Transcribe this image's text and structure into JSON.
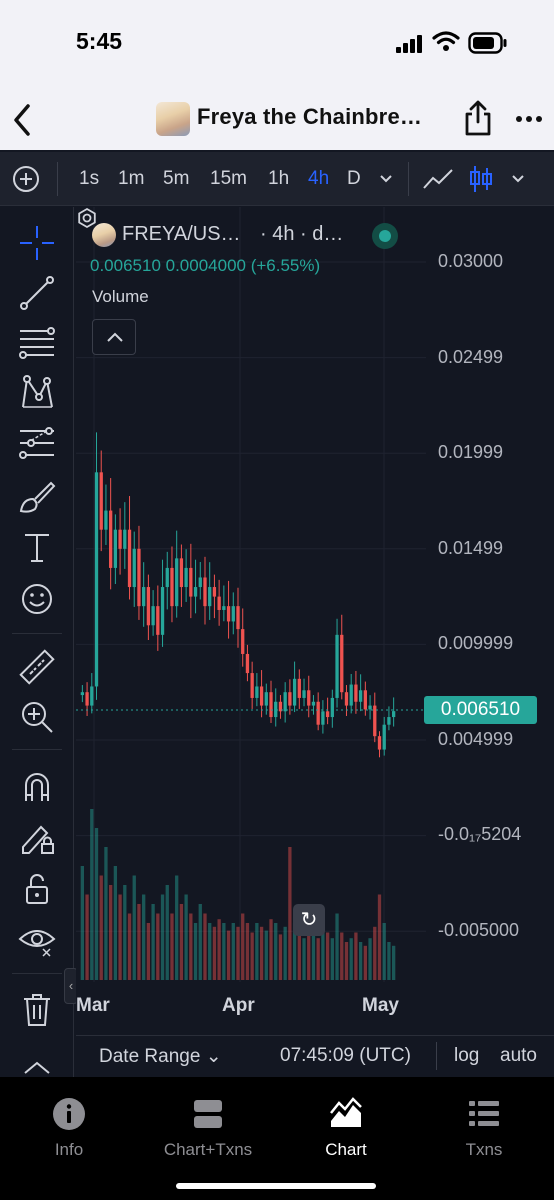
{
  "status_bar": {
    "time": "5:45"
  },
  "nav": {
    "title": "Freya the Chainbre…"
  },
  "timeframes": [
    "1s",
    "1m",
    "5m",
    "15m",
    "1h",
    "4h",
    "D"
  ],
  "active_timeframe": "4h",
  "legend": {
    "symbol": "FREYA/US…",
    "interval": "· 4h · d…",
    "ohlc": "0.006510  0.0004000 (+6.55%)",
    "volume_label": "Volume"
  },
  "colors": {
    "up": "#26a69a",
    "down": "#ef5350",
    "accent": "#2962ff",
    "background": "#131722"
  },
  "chart_data": {
    "type": "candlestick",
    "symbol": "FREYA/US…",
    "interval": "4h",
    "last_price": "0.006510",
    "change": "0.0004000",
    "change_pct": "+6.55%",
    "y_ticks": [
      "0.03000",
      "0.02499",
      "0.01999",
      "0.01499",
      "0.009999",
      "0.004999",
      "-0.0₁₇5204",
      "-0.005000"
    ],
    "x_ticks": [
      "Mar",
      "Apr",
      "May"
    ],
    "series_close": [
      0.0075,
      0.0068,
      0.0078,
      0.019,
      0.016,
      0.017,
      0.014,
      0.016,
      0.015,
      0.016,
      0.013,
      0.015,
      0.012,
      0.013,
      0.011,
      0.012,
      0.0105,
      0.013,
      0.014,
      0.012,
      0.0145,
      0.013,
      0.014,
      0.0125,
      0.013,
      0.0135,
      0.012,
      0.013,
      0.0125,
      0.0118,
      0.012,
      0.0112,
      0.012,
      0.0108,
      0.0095,
      0.0085,
      0.0072,
      0.0078,
      0.0068,
      0.0075,
      0.0062,
      0.007,
      0.0065,
      0.0075,
      0.0068,
      0.0082,
      0.0072,
      0.0076,
      0.0068,
      0.007,
      0.0058,
      0.0065,
      0.0062,
      0.0072,
      0.0105,
      0.0075,
      0.0068,
      0.0079,
      0.007,
      0.0076,
      0.0066,
      0.0068,
      0.0052,
      0.0045,
      0.0058,
      0.0062,
      0.00651
    ],
    "volume": [
      0.6,
      0.45,
      0.9,
      0.8,
      0.55,
      0.7,
      0.5,
      0.6,
      0.45,
      0.5,
      0.35,
      0.55,
      0.4,
      0.45,
      0.3,
      0.4,
      0.35,
      0.45,
      0.5,
      0.35,
      0.55,
      0.4,
      0.45,
      0.35,
      0.3,
      0.4,
      0.35,
      0.3,
      0.28,
      0.32,
      0.3,
      0.26,
      0.3,
      0.28,
      0.35,
      0.3,
      0.25,
      0.3,
      0.28,
      0.26,
      0.32,
      0.3,
      0.24,
      0.28,
      0.7,
      0.3,
      0.25,
      0.22,
      0.28,
      0.25,
      0.22,
      0.3,
      0.25,
      0.22,
      0.35,
      0.25,
      0.2,
      0.22,
      0.25,
      0.2,
      0.18,
      0.22,
      0.28,
      0.45,
      0.3,
      0.2,
      0.18
    ]
  },
  "date_range_label": "Date Range",
  "clock": "07:45:09 (UTC)",
  "scale_log": "log",
  "scale_auto": "auto",
  "tabs": [
    {
      "label": "Info",
      "icon": "info-icon"
    },
    {
      "label": "Chart+Txns",
      "icon": "split-view-icon"
    },
    {
      "label": "Chart",
      "icon": "chart-icon"
    },
    {
      "label": "Txns",
      "icon": "list-icon"
    }
  ],
  "active_tab": "Chart"
}
